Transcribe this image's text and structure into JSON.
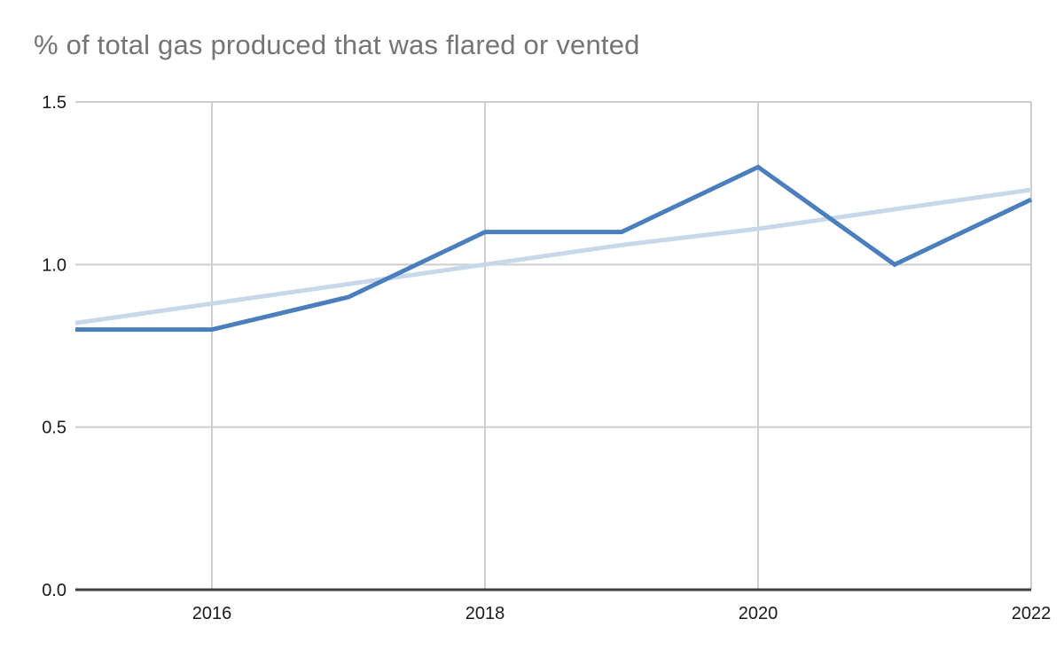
{
  "title": "% of total gas produced that was flared or vented",
  "colors": {
    "background": "#ffffff",
    "title_text": "#757575",
    "tick_text": "#1a1a1a",
    "gridline": "#cecece",
    "axis": "#3d3d3d",
    "series_actual": "#4a7ebc",
    "series_trend": "#c7d8eb"
  },
  "chart_data": {
    "type": "line",
    "title": "% of total gas produced that was flared or vented",
    "xlabel": "",
    "ylabel": "",
    "x": [
      2015,
      2016,
      2017,
      2018,
      2019,
      2020,
      2021,
      2022
    ],
    "series": [
      {
        "name": "flared-or-vented-pct",
        "color_key": "series_actual",
        "stroke_width": 5,
        "values": [
          0.8,
          0.8,
          0.9,
          1.1,
          1.1,
          1.3,
          1.0,
          1.2
        ]
      },
      {
        "name": "linear-trend",
        "color_key": "series_trend",
        "stroke_width": 5,
        "values": [
          0.82,
          0.88,
          0.94,
          1.0,
          1.06,
          1.11,
          1.17,
          1.23
        ]
      }
    ],
    "xlim": [
      2015,
      2022
    ],
    "ylim": [
      0,
      1.5
    ],
    "x_ticks": [
      2016,
      2018,
      2020,
      2022
    ],
    "x_tick_labels": [
      "2016",
      "2018",
      "2020",
      "2022"
    ],
    "y_ticks": [
      0.0,
      0.5,
      1.0,
      1.5
    ],
    "y_tick_labels": [
      "0.0",
      "0.5",
      "1.0",
      "1.5"
    ],
    "grid": true,
    "legend": "none"
  }
}
